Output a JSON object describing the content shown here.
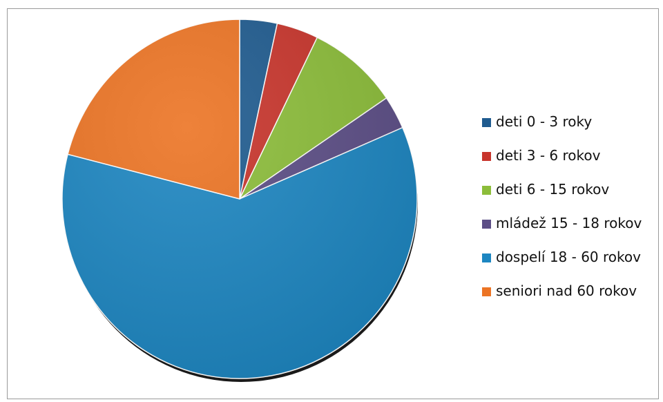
{
  "chart_data": {
    "type": "pie",
    "title": "",
    "legend_position": "right",
    "start_angle_deg": 0,
    "direction": "clockwise",
    "slices": [
      {
        "label": "deti 0 - 3 roky",
        "value": 3.4,
        "color": "#1f5b8f"
      },
      {
        "label": "deti 3 - 6 rokov",
        "value": 3.8,
        "color": "#c8352c"
      },
      {
        "label": "deti 6 - 15 rokov",
        "value": 8.3,
        "color": "#8cbd3a"
      },
      {
        "label": "mládež 15 - 18 rokov",
        "value": 3.0,
        "color": "#5c4e86"
      },
      {
        "label": "dospelí 18 - 60 rokov",
        "value": 60.5,
        "color": "#1d86c1"
      },
      {
        "label": "seniori nad 60 rokov",
        "value": 21.0,
        "color": "#ec7424"
      }
    ]
  }
}
